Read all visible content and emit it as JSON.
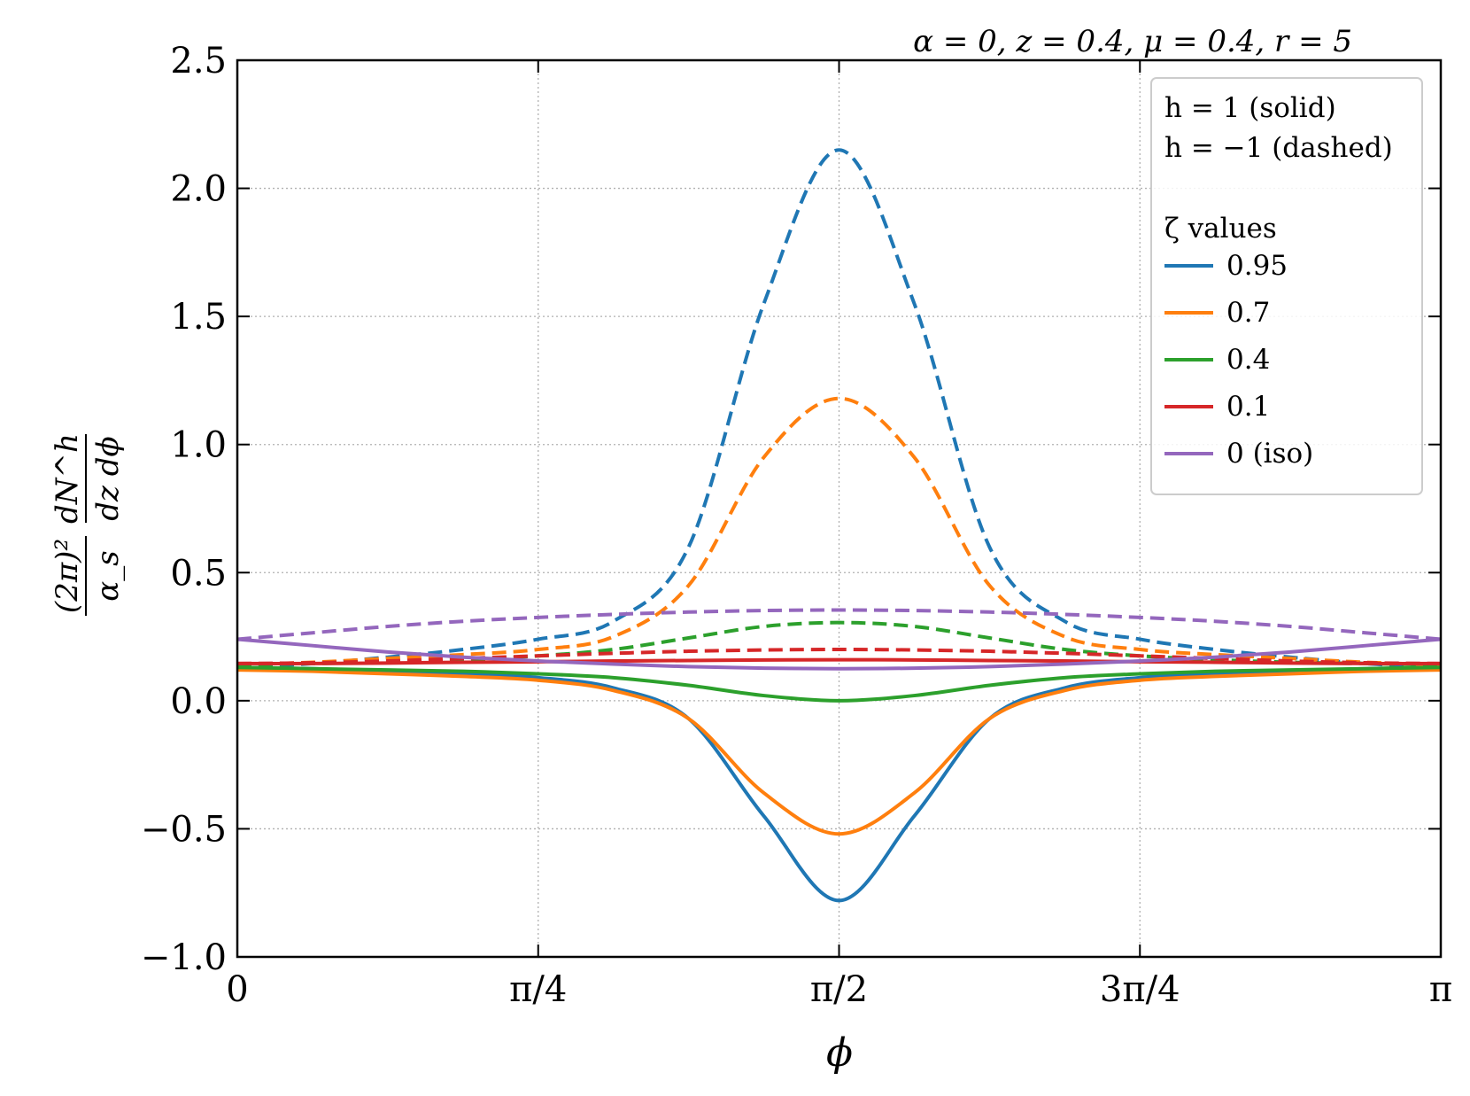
{
  "chart_data": {
    "type": "line",
    "title": "α = 0, z = 0.4, μ = 0.4, r = 5",
    "xlabel": "ϕ",
    "ylabel": {
      "prefix": "(2π)²",
      "prefix_den": "α_s",
      "num": "dN^h",
      "den": "dz dϕ"
    },
    "xlim": [
      0,
      3.14159
    ],
    "ylim": [
      -1.0,
      2.5
    ],
    "grid": true,
    "x_ticks": [
      {
        "value": 0,
        "label": "0"
      },
      {
        "value": 0.7854,
        "label": "π/4"
      },
      {
        "value": 1.5708,
        "label": "π/2"
      },
      {
        "value": 2.3562,
        "label": "3π/4"
      },
      {
        "value": 3.14159,
        "label": "π"
      }
    ],
    "y_ticks": [
      {
        "value": 2.5,
        "label": "2.5"
      },
      {
        "value": 2.0,
        "label": "2.0"
      },
      {
        "value": 1.5,
        "label": "1.5"
      },
      {
        "value": 1.0,
        "label": "1.0"
      },
      {
        "value": 0.5,
        "label": "0.5"
      },
      {
        "value": 0.0,
        "label": "0.0"
      },
      {
        "value": -0.5,
        "label": "−0.5"
      },
      {
        "value": -1.0,
        "label": "−1.0"
      }
    ],
    "legend": {
      "position": "top-right",
      "notes": [
        "h = 1 (solid)",
        "h = −1 (dashed)"
      ],
      "heading": "ζ values"
    },
    "x": [
      0,
      0.19635,
      0.3927,
      0.58905,
      0.7854,
      0.98175,
      1.1781,
      1.37445,
      1.5708,
      1.76715,
      1.9635,
      2.15985,
      2.3562,
      2.55255,
      2.7489,
      2.94525,
      3.14159
    ],
    "series": [
      {
        "name": "0.95",
        "zeta": "0.95",
        "helicity": 1,
        "color": "#1f77b4",
        "dash": "solid",
        "values": [
          0.13,
          0.125,
          0.115,
          0.105,
          0.09,
          0.05,
          -0.07,
          -0.45,
          -0.78,
          -0.45,
          -0.07,
          0.05,
          0.09,
          0.105,
          0.115,
          0.125,
          0.13
        ]
      },
      {
        "name": "0.95",
        "zeta": "0.95",
        "helicity": -1,
        "color": "#1f77b4",
        "dash": "dashed",
        "values": [
          0.13,
          0.145,
          0.17,
          0.2,
          0.24,
          0.31,
          0.6,
          1.55,
          2.15,
          1.55,
          0.6,
          0.31,
          0.24,
          0.2,
          0.17,
          0.145,
          0.13
        ]
      },
      {
        "name": "0.7",
        "zeta": "0.7",
        "helicity": 1,
        "color": "#ff7f0e",
        "dash": "solid",
        "values": [
          0.12,
          0.115,
          0.105,
          0.095,
          0.08,
          0.04,
          -0.07,
          -0.36,
          -0.52,
          -0.36,
          -0.07,
          0.04,
          0.08,
          0.095,
          0.105,
          0.115,
          0.12
        ]
      },
      {
        "name": "0.7",
        "zeta": "0.7",
        "helicity": -1,
        "color": "#ff7f0e",
        "dash": "dashed",
        "values": [
          0.14,
          0.15,
          0.165,
          0.18,
          0.2,
          0.25,
          0.45,
          0.95,
          1.18,
          0.95,
          0.45,
          0.25,
          0.2,
          0.18,
          0.165,
          0.15,
          0.14
        ]
      },
      {
        "name": "0.4",
        "zeta": "0.4",
        "helicity": 1,
        "color": "#2ca02c",
        "dash": "solid",
        "values": [
          0.13,
          0.125,
          0.12,
          0.115,
          0.105,
          0.09,
          0.06,
          0.02,
          0.0,
          0.02,
          0.06,
          0.09,
          0.105,
          0.115,
          0.12,
          0.125,
          0.13
        ]
      },
      {
        "name": "0.4",
        "zeta": "0.4",
        "helicity": -1,
        "color": "#2ca02c",
        "dash": "dashed",
        "values": [
          0.14,
          0.145,
          0.15,
          0.16,
          0.175,
          0.2,
          0.245,
          0.29,
          0.305,
          0.29,
          0.245,
          0.2,
          0.175,
          0.16,
          0.15,
          0.145,
          0.14
        ]
      },
      {
        "name": "0.1",
        "zeta": "0.1",
        "helicity": 1,
        "color": "#d62728",
        "dash": "solid",
        "values": [
          0.145,
          0.145,
          0.147,
          0.15,
          0.152,
          0.155,
          0.157,
          0.159,
          0.16,
          0.159,
          0.157,
          0.155,
          0.152,
          0.15,
          0.147,
          0.145,
          0.145
        ]
      },
      {
        "name": "0.1",
        "zeta": "0.1",
        "helicity": -1,
        "color": "#d62728",
        "dash": "dashed",
        "values": [
          0.145,
          0.148,
          0.155,
          0.165,
          0.175,
          0.185,
          0.193,
          0.198,
          0.2,
          0.198,
          0.193,
          0.185,
          0.175,
          0.165,
          0.155,
          0.148,
          0.145
        ]
      },
      {
        "name": "0 (iso)",
        "zeta": "0 (iso)",
        "helicity": 1,
        "color": "#9467bd",
        "dash": "solid",
        "values": [
          0.24,
          0.215,
          0.19,
          0.17,
          0.155,
          0.143,
          0.133,
          0.127,
          0.125,
          0.127,
          0.133,
          0.143,
          0.155,
          0.17,
          0.19,
          0.215,
          0.24
        ]
      },
      {
        "name": "0 (iso)",
        "zeta": "0 (iso)",
        "helicity": -1,
        "color": "#9467bd",
        "dash": "dashed",
        "values": [
          0.24,
          0.265,
          0.29,
          0.31,
          0.325,
          0.337,
          0.346,
          0.352,
          0.354,
          0.352,
          0.346,
          0.337,
          0.325,
          0.31,
          0.29,
          0.265,
          0.24
        ]
      }
    ]
  }
}
